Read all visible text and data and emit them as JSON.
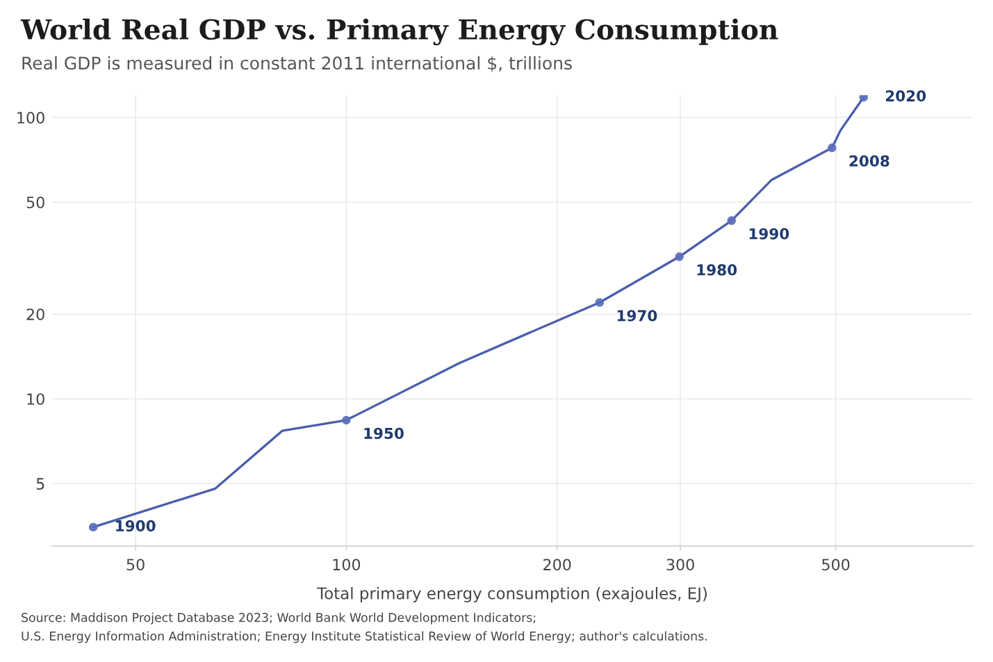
{
  "chart_data": {
    "type": "line",
    "title": "World Real GDP vs. Primary Energy Consumption",
    "subtitle": "Real GDP is measured in constant 2011 international $, trillions",
    "xlabel": "Total primary energy consumption (exajoules, EJ)",
    "series": [
      {
        "color": "#4a5eae",
        "marker": "none",
        "x": [
          43.5,
          65,
          81,
          100,
          145,
          230,
          299,
          355,
          405,
          494,
          508,
          548
        ],
        "values": [
          3.5,
          4.8,
          7.7,
          8.4,
          13.4,
          22,
          32,
          43,
          60,
          78,
          90,
          118
        ]
      },
      {
        "type": "scatter",
        "color": "#5b6dbb",
        "marker": "circle",
        "x": [
          43.5,
          100,
          230,
          299,
          355,
          494,
          548
        ],
        "values": [
          3.5,
          8.4,
          22,
          32,
          43,
          78,
          118
        ]
      }
    ],
    "log": "xy",
    "xlim": [
      38,
      785
    ],
    "ylim": [
      3,
      120
    ],
    "xticks": [
      50,
      100,
      200,
      300,
      500
    ],
    "yticks": [
      5,
      10,
      20,
      50,
      100
    ],
    "grid": true,
    "line_style": "solid",
    "annotations": [
      {
        "text": "1900",
        "x": 43.5,
        "y": 3.5
      },
      {
        "text": "1950",
        "x": 100,
        "y": 8.4
      },
      {
        "text": "1970",
        "x": 230,
        "y": 22
      },
      {
        "text": "1980",
        "x": 299,
        "y": 32
      },
      {
        "text": "1990",
        "x": 355,
        "y": 43
      },
      {
        "text": "2008",
        "x": 494,
        "y": 78
      },
      {
        "text": "2020",
        "x": 548,
        "y": 118
      },
      "Source: Maddison Project Database 2023; World Bank World Development Indicators;\nU.S. Energy Information Administration; Energy Institute Statistical Review of World Energy; author's calculations."
    ]
  }
}
